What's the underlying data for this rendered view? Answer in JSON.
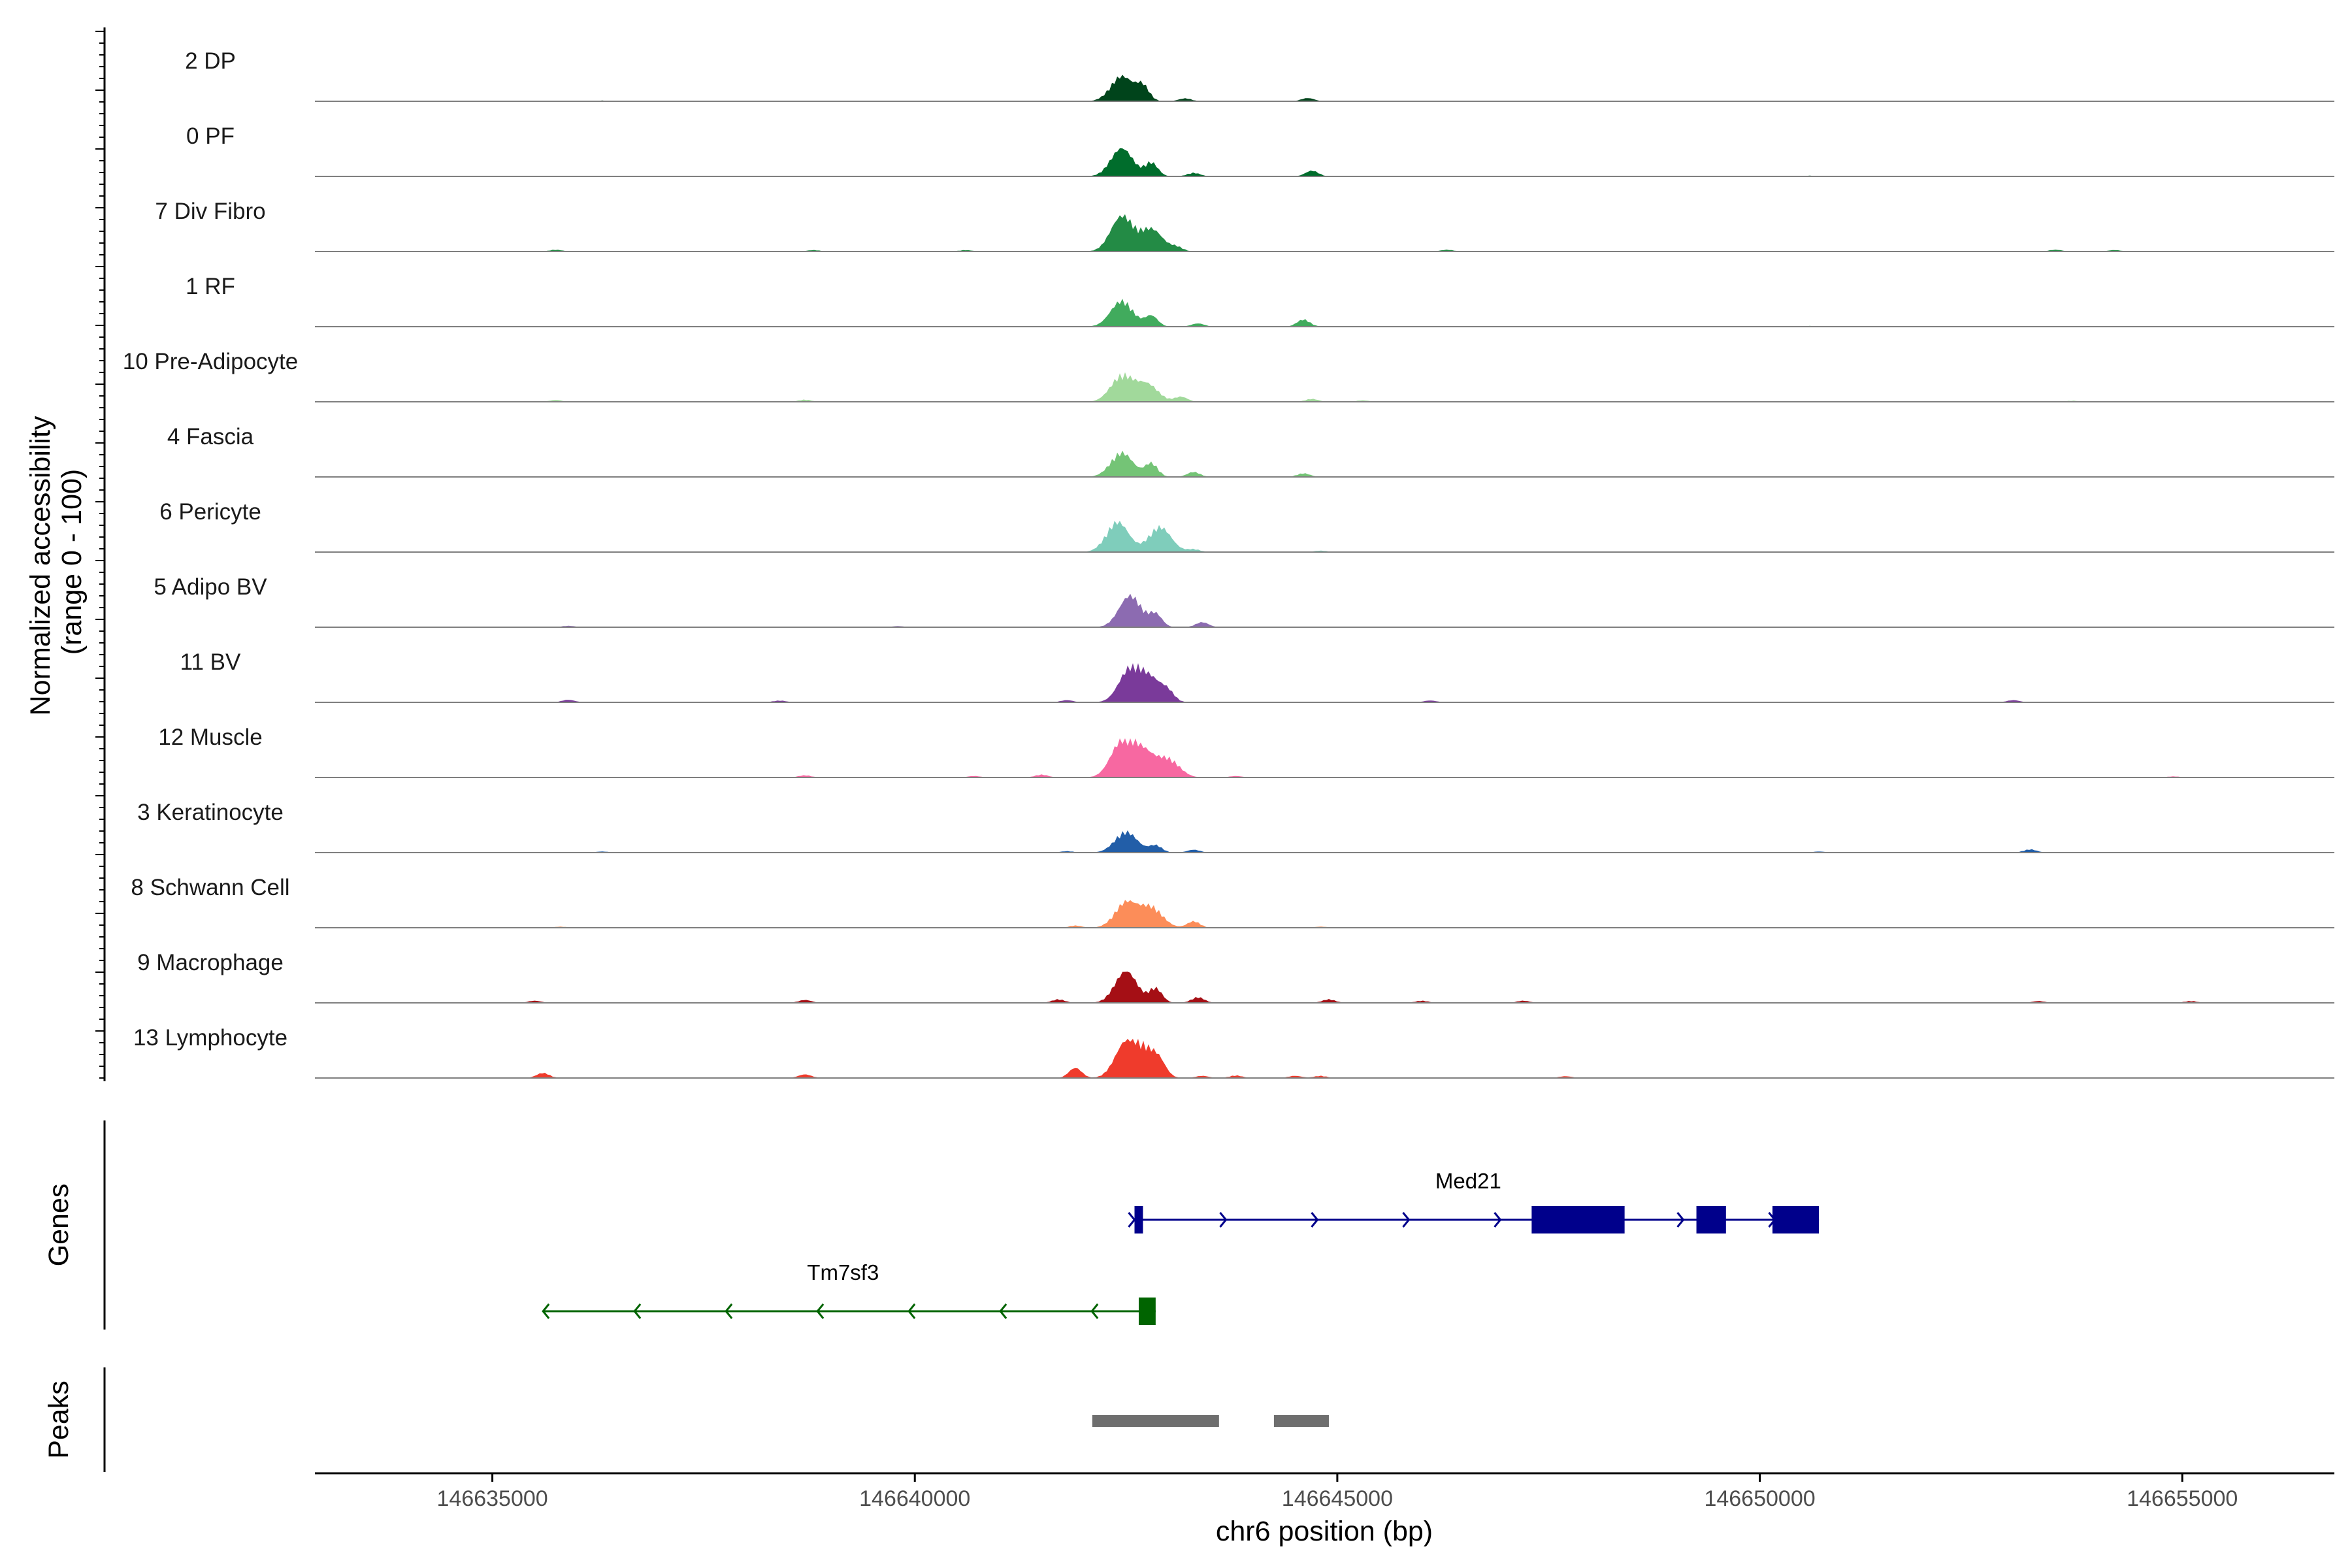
{
  "chart_data": {
    "type": "area",
    "title": "",
    "xlabel": "chr6 position (bp)",
    "ylabel": "Normalized accessibility\n(range 0 - 100)",
    "ylabel_lines": [
      "Normalized accessibility",
      "(range 0 - 100)"
    ],
    "xlim": [
      146632900,
      146656800
    ],
    "ylim": [
      0,
      100
    ],
    "x_ticks": [
      146635000,
      146640000,
      146645000,
      146650000,
      146655000
    ],
    "x_tick_labels": [
      "146635000",
      "146640000",
      "146645000",
      "146650000",
      "146655000"
    ],
    "tracks": [
      {
        "label": "2 DP",
        "color": "#00441b",
        "peaks": [
          [
            146642450,
            70
          ],
          [
            146642700,
            40
          ],
          [
            146643200,
            8
          ],
          [
            146644650,
            9
          ],
          [
            146636300,
            2
          ]
        ]
      },
      {
        "label": "0 PF",
        "color": "#006d2c",
        "peaks": [
          [
            146642450,
            78
          ],
          [
            146642800,
            38
          ],
          [
            146643300,
            10
          ],
          [
            146644700,
            16
          ],
          [
            146650600,
            2
          ]
        ]
      },
      {
        "label": "7 Div Fibro",
        "color": "#238b45",
        "peaks": [
          [
            146642450,
            98
          ],
          [
            146642800,
            62
          ],
          [
            146643100,
            12
          ],
          [
            146635750,
            5
          ],
          [
            146638800,
            4
          ],
          [
            146640600,
            4
          ],
          [
            146646300,
            5
          ],
          [
            146653500,
            5
          ],
          [
            146654200,
            4
          ]
        ]
      },
      {
        "label": "1 RF",
        "color": "#41ab5d",
        "peaks": [
          [
            146642450,
            72
          ],
          [
            146642800,
            30
          ],
          [
            146643350,
            9
          ],
          [
            146644600,
            20
          ],
          [
            146650600,
            2
          ]
        ]
      },
      {
        "label": "10 Pre-Adipocyte",
        "color": "#a1d99b",
        "peaks": [
          [
            146642450,
            72
          ],
          [
            146642750,
            48
          ],
          [
            146643150,
            14
          ],
          [
            146635750,
            5
          ],
          [
            146638700,
            6
          ],
          [
            146644700,
            8
          ],
          [
            146645300,
            4
          ],
          [
            146653700,
            3
          ]
        ]
      },
      {
        "label": "4 Fascia",
        "color": "#74c476",
        "peaks": [
          [
            146642450,
            68
          ],
          [
            146642800,
            38
          ],
          [
            146643300,
            14
          ],
          [
            146644600,
            10
          ]
        ]
      },
      {
        "label": "6 Pericyte",
        "color": "#7fcdbb",
        "peaks": [
          [
            146642400,
            84
          ],
          [
            146642900,
            70
          ],
          [
            146643300,
            8
          ],
          [
            146644800,
            4
          ]
        ]
      },
      {
        "label": "5 Adipo BV",
        "color": "#8c6bb1",
        "peaks": [
          [
            146642550,
            88
          ],
          [
            146642850,
            35
          ],
          [
            146643400,
            14
          ],
          [
            146635900,
            4
          ],
          [
            146639800,
            3
          ]
        ]
      },
      {
        "label": "11 BV",
        "color": "#7a3a9a",
        "peaks": [
          [
            146642550,
            92
          ],
          [
            146642800,
            60
          ],
          [
            146643000,
            22
          ],
          [
            146641800,
            6
          ],
          [
            146635900,
            7
          ],
          [
            146638400,
            5
          ],
          [
            146646100,
            5
          ],
          [
            146653000,
            6
          ]
        ]
      },
      {
        "label": "12 Muscle",
        "color": "#f768a1",
        "peaks": [
          [
            146642450,
            98
          ],
          [
            146642700,
            68
          ],
          [
            146643000,
            50
          ],
          [
            146641500,
            8
          ],
          [
            146638700,
            6
          ],
          [
            146640700,
            4
          ],
          [
            146643800,
            4
          ],
          [
            146654900,
            3
          ]
        ]
      },
      {
        "label": "3 Keratinocyte",
        "color": "#225ea8",
        "peaks": [
          [
            146642500,
            58
          ],
          [
            146642850,
            20
          ],
          [
            146643300,
            8
          ],
          [
            146641800,
            4
          ],
          [
            146653200,
            9
          ],
          [
            146636300,
            3
          ],
          [
            146650700,
            3
          ]
        ]
      },
      {
        "label": "8 Schwann Cell",
        "color": "#fc8d59",
        "peaks": [
          [
            146642500,
            70
          ],
          [
            146642800,
            56
          ],
          [
            146643300,
            18
          ],
          [
            146641900,
            6
          ],
          [
            146635800,
            3
          ],
          [
            146644800,
            3
          ]
        ]
      },
      {
        "label": "9 Macrophage",
        "color": "#a50f15",
        "peaks": [
          [
            146642500,
            88
          ],
          [
            146642850,
            40
          ],
          [
            146643350,
            16
          ],
          [
            146641700,
            10
          ],
          [
            146635500,
            6
          ],
          [
            146638700,
            8
          ],
          [
            146644900,
            10
          ],
          [
            146646000,
            6
          ],
          [
            146647200,
            6
          ],
          [
            146653300,
            5
          ],
          [
            146655100,
            5
          ]
        ]
      },
      {
        "label": "13 Lymphocyte",
        "color": "#ef3b2c",
        "peaks": [
          [
            146642500,
            96
          ],
          [
            146642750,
            70
          ],
          [
            146641900,
            28
          ],
          [
            146642900,
            24
          ],
          [
            146635600,
            14
          ],
          [
            146638700,
            10
          ],
          [
            146643400,
            6
          ],
          [
            146643800,
            7
          ],
          [
            146644500,
            6
          ],
          [
            146644800,
            6
          ],
          [
            146647700,
            5
          ]
        ]
      }
    ],
    "genes": [
      {
        "name": "Med21",
        "strand": "+",
        "color": "#00008b",
        "start": 146642600,
        "end": 146650700,
        "exons": [
          [
            146642600,
            146642700
          ],
          [
            146647300,
            146648400
          ],
          [
            146649250,
            146649600
          ],
          [
            146650150,
            146650700
          ]
        ]
      },
      {
        "name": "Tm7sf3",
        "strand": "-",
        "color": "#006400",
        "start": 146635600,
        "end": 146642850,
        "exons": [
          [
            146642650,
            146642850
          ]
        ]
      }
    ],
    "peaks": [
      [
        146642100,
        146643600
      ],
      [
        146644250,
        146644900
      ]
    ]
  },
  "labels": {
    "genes_axis": "Genes",
    "peaks_axis": "Peaks"
  },
  "colors": {
    "baseline": "#7f7f7f",
    "peak_bar": "#6e6e6e",
    "axis": "#000000"
  }
}
